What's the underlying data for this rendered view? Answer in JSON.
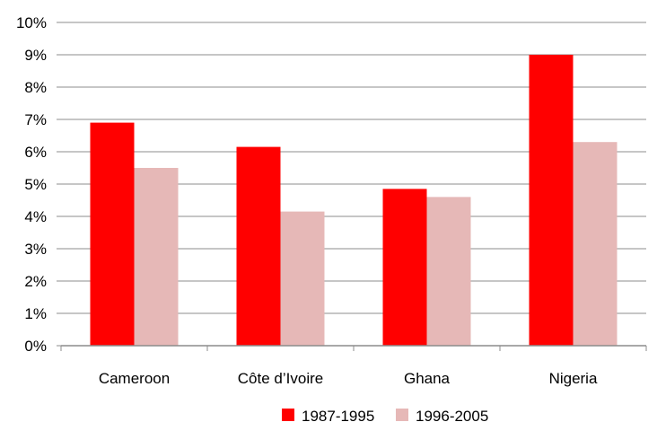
{
  "chart_data": {
    "type": "bar",
    "categories": [
      "Cameroon",
      "Côte d’Ivoire",
      "Ghana",
      "Nigeria"
    ],
    "series": [
      {
        "name": "1987-1995",
        "color": "#ff0000",
        "values": [
          6.9,
          6.15,
          4.85,
          9.0
        ]
      },
      {
        "name": "1996-2005",
        "color": "#e6b8b7",
        "values": [
          5.5,
          4.15,
          4.6,
          6.3
        ]
      }
    ],
    "yticks": [
      "0%",
      "1%",
      "2%",
      "3%",
      "4%",
      "5%",
      "6%",
      "7%",
      "8%",
      "9%",
      "10%"
    ],
    "ylim": [
      0,
      10
    ],
    "title": "",
    "xlabel": "",
    "ylabel": "",
    "grid": true,
    "legend_position": "bottom-right"
  }
}
